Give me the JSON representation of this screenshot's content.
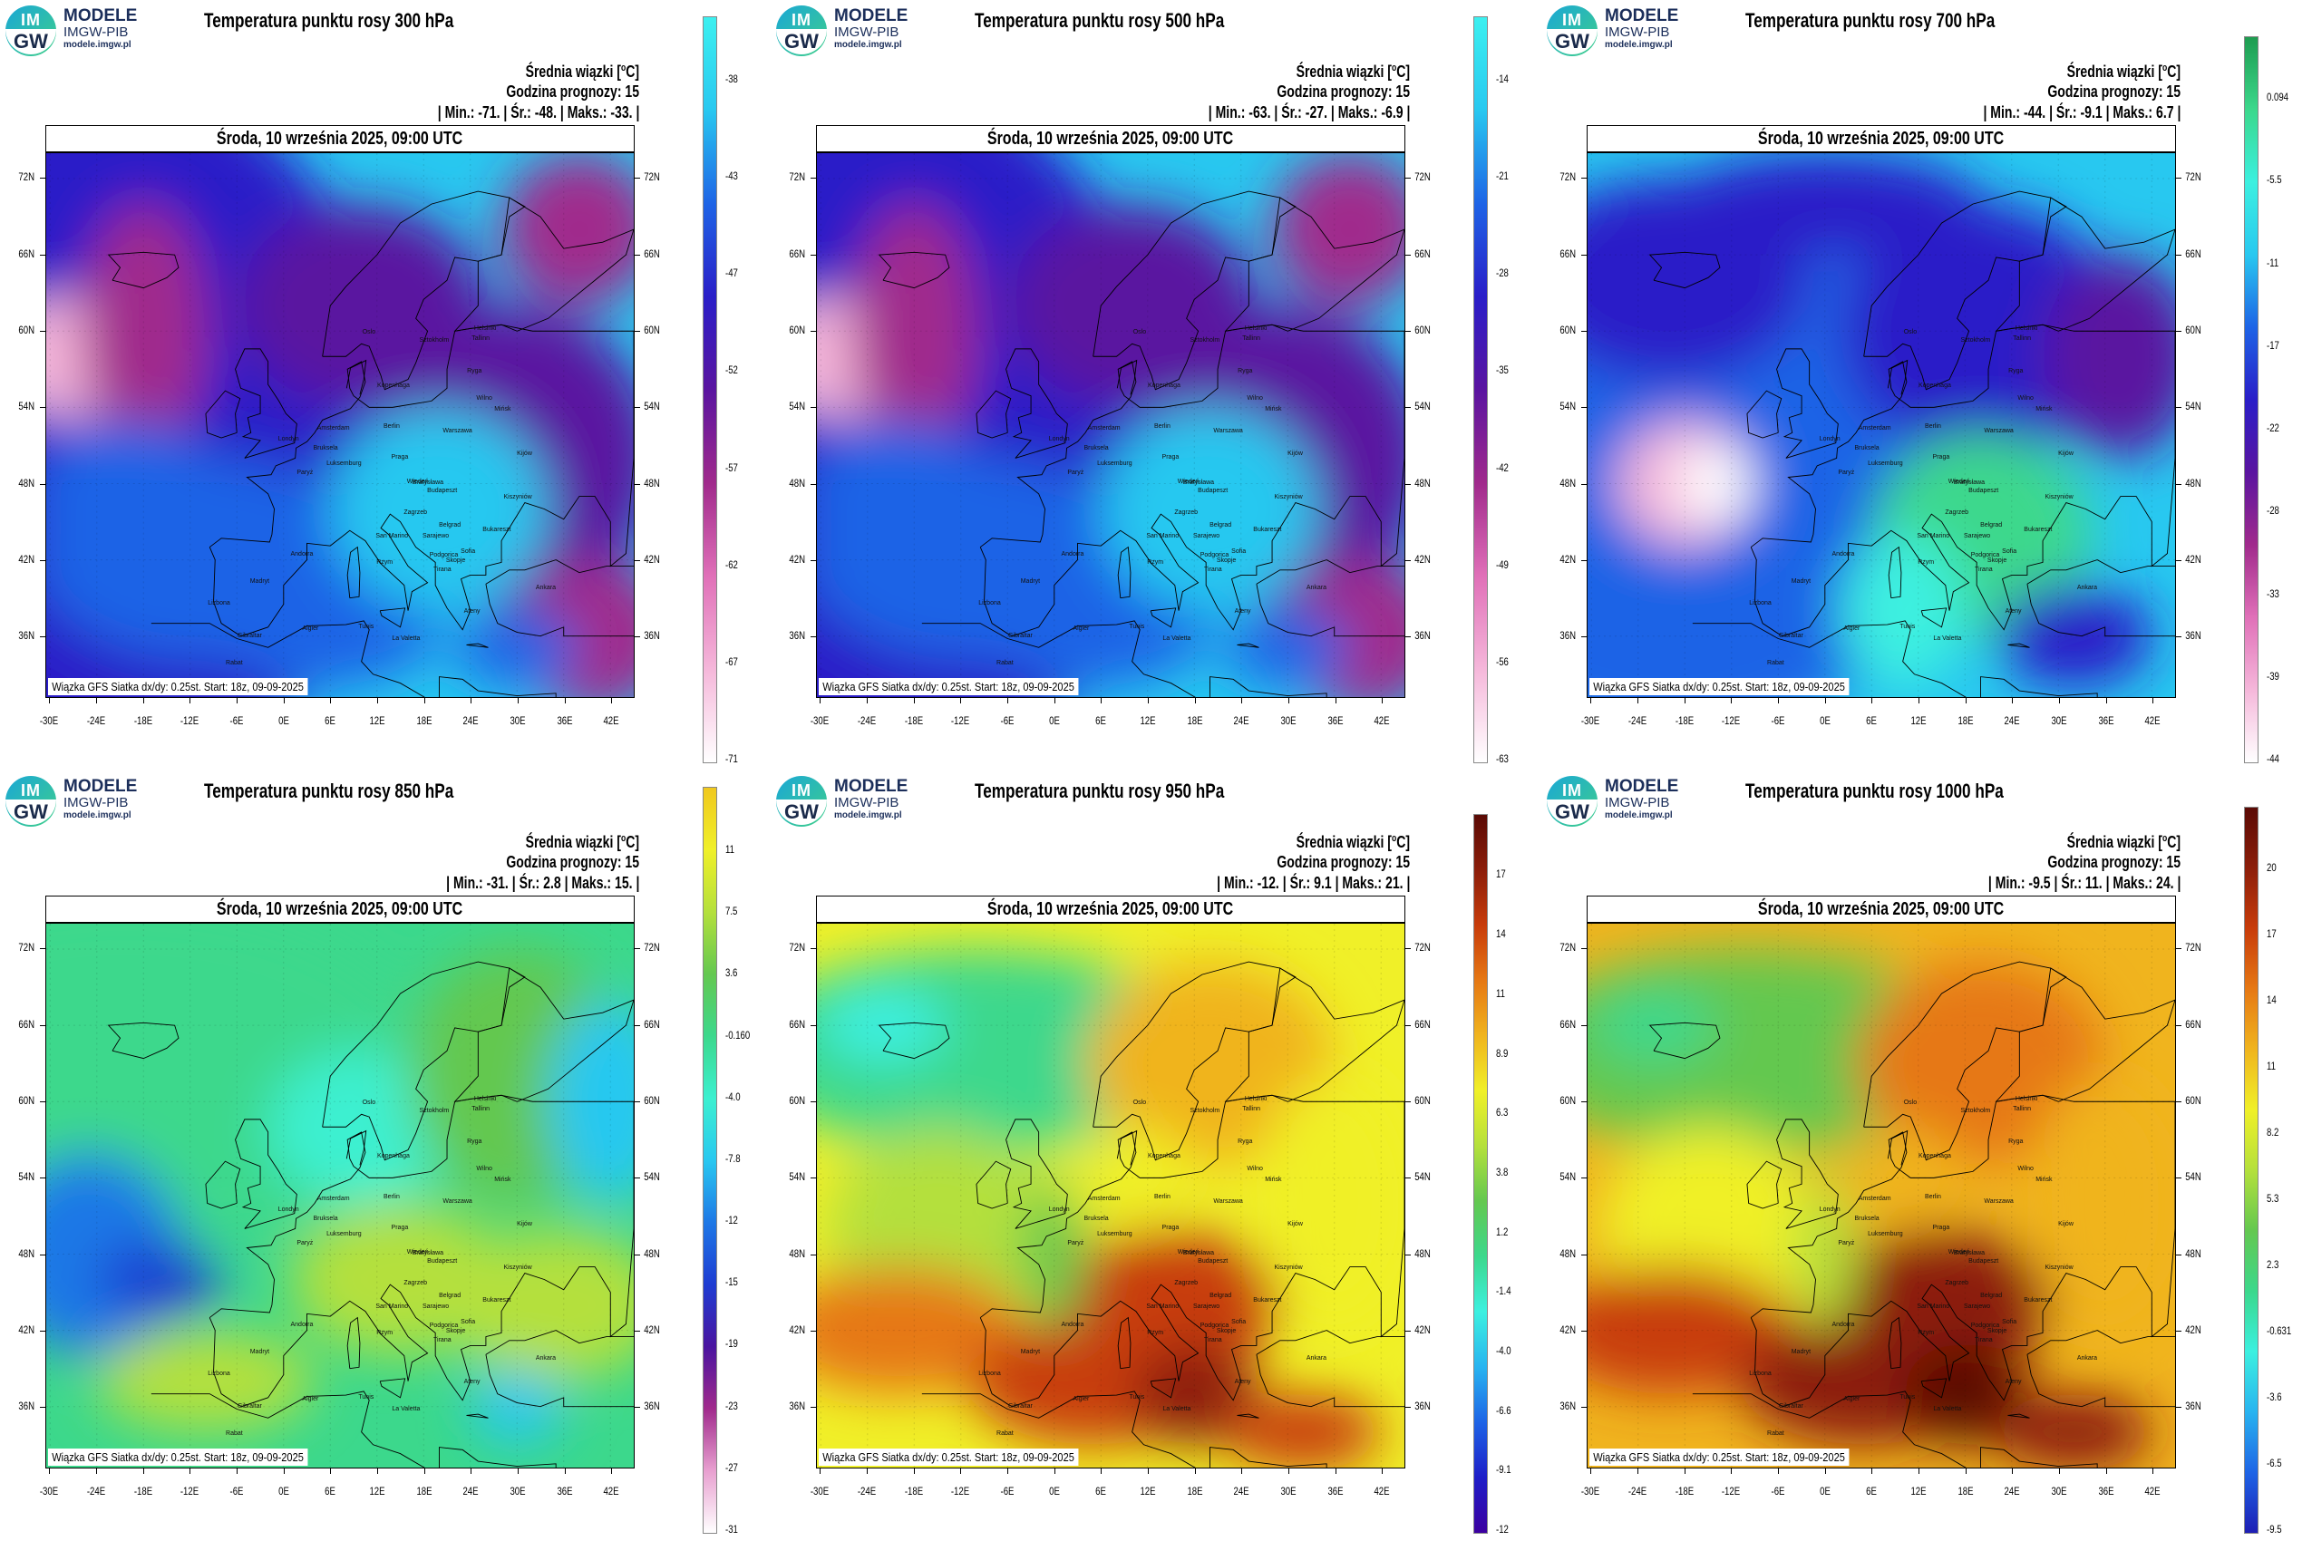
{
  "logo": {
    "mark_top": "IM",
    "mark_bottom": "GW",
    "line1": "MODELE",
    "line2": "IMGW-PIB",
    "line3": "modele.imgw.pl"
  },
  "date_label": "Środa, 10 września 2025, 09:00 UTC",
  "info_line1": "Średnia wiązki [",
  "info_unit": "o",
  "info_unit_end": "C]",
  "info_line2": "Godzina prognozy: 15",
  "footer": "Wiązka GFS Siatka dx/dy: 0.25st. Start: 18z, 09-09-2025",
  "lat_labels": [
    "72N",
    "66N",
    "60N",
    "54N",
    "48N",
    "42N",
    "36N"
  ],
  "lon_labels": [
    "-30E",
    "-24E",
    "-18E",
    "-12E",
    "-6E",
    "0E",
    "6E",
    "12E",
    "18E",
    "24E",
    "30E",
    "36E",
    "42E"
  ],
  "cities": [
    "Oslo",
    "Sztokholm",
    "Helsinki",
    "Tallinn",
    "Ryga",
    "Kopenhaga",
    "Wilno",
    "Mińsk",
    "Warszawa",
    "Berlin",
    "Amsterdam",
    "Bruksela",
    "Londyn",
    "Paryż",
    "Luksemburg",
    "Praga",
    "Wiedeń",
    "Budapeszt",
    "Bratysława",
    "Kiszyniów",
    "Zagrzeb",
    "Belgrad",
    "Bukareszt",
    "Sofia",
    "Sarajewo",
    "San Marino",
    "Rzym",
    "Madryt",
    "Lizbona",
    "Andorra",
    "Ankara",
    "Tunis",
    "La Valetta",
    "Algier",
    "Rabat",
    "Gibraltar",
    "Ateny",
    "Skopje",
    "Tirana",
    "Podgorica",
    "Kijów"
  ],
  "panels": [
    {
      "title": "Temperatura punktu rosy 300 hPa",
      "stats": {
        "min_label": "| Min.:",
        "min": "-71.",
        "avg_label": "| Śr.:",
        "avg": "-48.",
        "max_label": "| Maks.:",
        "max": "-33.",
        "end": "|"
      },
      "colorbar": [
        "-38",
        "-43",
        "-47",
        "-52",
        "-57",
        "-62",
        "-67",
        "-71"
      ],
      "colors": [
        "#ffffff",
        "#f5b7da",
        "#e070b8",
        "#a02a8c",
        "#5a14a0",
        "#2a1ec8",
        "#1e64e6",
        "#28c8f0",
        "#3cf0f0"
      ],
      "scheme": "cold"
    },
    {
      "title": "Temperatura punktu rosy 500 hPa",
      "stats": {
        "min_label": "| Min.:",
        "min": "-63.",
        "avg_label": "| Śr.:",
        "avg": "-27.",
        "max_label": "| Maks.:",
        "max": "-6.9",
        "end": "|"
      },
      "colorbar": [
        "-14",
        "-21",
        "-28",
        "-35",
        "-42",
        "-49",
        "-56",
        "-63"
      ],
      "colors": [
        "#ffffff",
        "#f5b7da",
        "#e070b8",
        "#a02a8c",
        "#5a14a0",
        "#2a1ec8",
        "#1e64e6",
        "#28c8f0",
        "#3cf0f0"
      ],
      "scheme": "cold"
    },
    {
      "title": "Temperatura punktu rosy 700 hPa",
      "stats": {
        "min_label": "| Min.:",
        "min": "-44.",
        "avg_label": "| Śr.:",
        "avg": "-9.1",
        "max_label": "| Maks.:",
        "max": "6.7",
        "end": "|"
      },
      "colorbar": [
        "0.094",
        "-5.5",
        "-11",
        "-17",
        "-22",
        "-28",
        "-33",
        "-39",
        "-44"
      ],
      "colors": [
        "#ffffff",
        "#f5b7da",
        "#e070b8",
        "#a02a8c",
        "#5a14a0",
        "#2a1ec8",
        "#1e64e6",
        "#28c8f0",
        "#3cf0e0",
        "#3cd88c",
        "#1e9c50"
      ],
      "scheme": "mid"
    },
    {
      "title": "Temperatura punktu rosy 850 hPa",
      "stats": {
        "min_label": "| Min.:",
        "min": "-31.",
        "avg_label": "| Śr.:",
        "avg": "2.8",
        "max_label": "| Maks.:",
        "max": "15.",
        "end": "|"
      },
      "colorbar": [
        "11",
        "7.5",
        "3.6",
        "-0.160",
        "-4.0",
        "-7.8",
        "-12",
        "-15",
        "-19",
        "-23",
        "-27",
        "-31"
      ],
      "colors": [
        "#ffffff",
        "#e8a0d0",
        "#a02a8c",
        "#4a14a0",
        "#1e3cd2",
        "#1e78e6",
        "#28c8f0",
        "#3cf0d0",
        "#3cd88c",
        "#64c850",
        "#b4e03c",
        "#f0f028",
        "#f0c81e"
      ],
      "scheme": "low"
    },
    {
      "title": "Temperatura punktu rosy 950 hPa",
      "stats": {
        "min_label": "| Min.:",
        "min": "-12.",
        "avg_label": "| Śr.:",
        "avg": "9.1",
        "max_label": "| Maks.:",
        "max": "21.",
        "end": "|"
      },
      "colorbar": [
        "17",
        "14",
        "11",
        "8.9",
        "6.3",
        "3.8",
        "1.2",
        "-1.4",
        "-4.0",
        "-6.6",
        "-9.1",
        "-12"
      ],
      "colors": [
        "#3c00a0",
        "#1e1ec8",
        "#1e64e6",
        "#28b4f0",
        "#3cf0e0",
        "#3cd88c",
        "#64c850",
        "#b4e03c",
        "#f0f028",
        "#f0b41e",
        "#e67814",
        "#c83c0a",
        "#8c1e0a",
        "#5a0a05"
      ],
      "scheme": "warm"
    },
    {
      "title": "Temperatura punktu rosy 1000 hPa",
      "stats": {
        "min_label": "| Min.:",
        "min": "-9.5",
        "avg_label": "| Śr.:",
        "avg": "11.",
        "max_label": "| Maks.:",
        "max": "24.",
        "end": "|"
      },
      "colorbar": [
        "20",
        "17",
        "14",
        "11",
        "8.2",
        "5.3",
        "2.3",
        "-0.631",
        "-3.6",
        "-6.5",
        "-9.5"
      ],
      "colors": [
        "#1e1eb4",
        "#1e64e6",
        "#28b4f0",
        "#3cf0e0",
        "#3cd88c",
        "#64c850",
        "#b4e03c",
        "#f0f028",
        "#f0b41e",
        "#e67814",
        "#c83c0a",
        "#8c1e0a",
        "#5a0a05"
      ],
      "scheme": "warm"
    }
  ]
}
